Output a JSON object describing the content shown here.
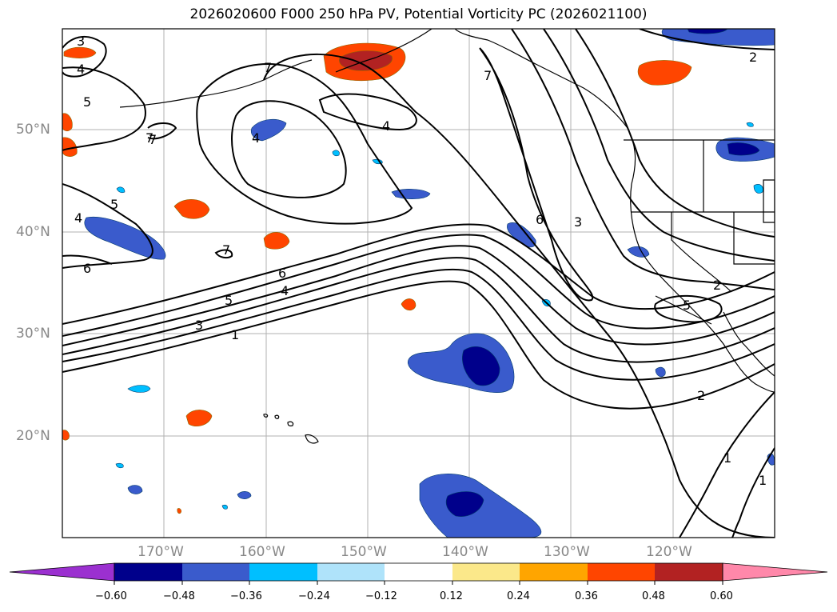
{
  "title": "2026020600 F000 250 hPa PV, Potential Vorticity PC (2026021100)",
  "lat_labels": [
    "50°N",
    "40°N",
    "30°N",
    "20°N"
  ],
  "lon_labels": [
    "170°W",
    "160°W",
    "150°W",
    "140°W",
    "130°W",
    "120°W"
  ],
  "contour_labels": [
    "3",
    "4",
    "5",
    "7",
    "7",
    "4",
    "7",
    "7",
    "4",
    "5",
    "4",
    "6",
    "7",
    "5",
    "3",
    "1",
    "6",
    "4",
    "6",
    "3",
    "2",
    "5",
    "2",
    "1",
    "1",
    "2"
  ],
  "colorbar": {
    "tick_labels": [
      "−0.60",
      "−0.48",
      "−0.36",
      "−0.24",
      "−0.12",
      "0.12",
      "0.24",
      "0.36",
      "0.48",
      "0.60"
    ],
    "colors": [
      "#9b30d0",
      "#00008b",
      "#3a5bcc",
      "#00bfff",
      "#afe3fa",
      "#ffffff",
      "#fbe88a",
      "#ffa500",
      "#ff4500",
      "#b22222",
      "#ff88aa"
    ]
  }
}
